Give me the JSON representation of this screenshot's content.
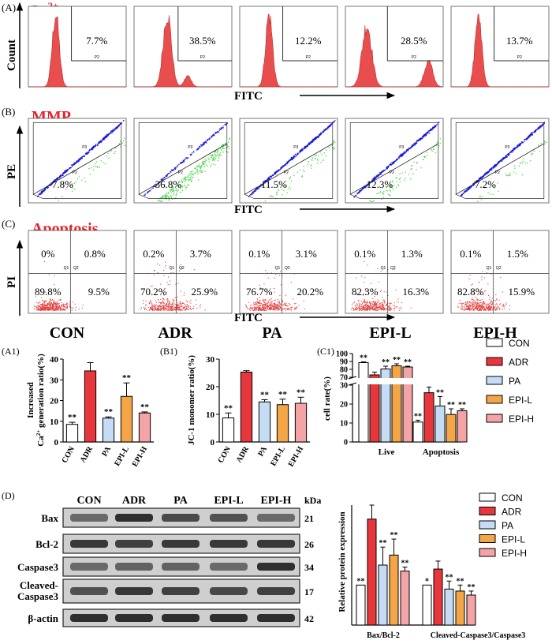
{
  "rows_top": [
    {
      "letter": "(A)",
      "name": "Ca",
      "name_sup": "2+",
      "y_label": "Count",
      "x_label": "FITC",
      "percents": [
        "7.7%",
        "38.5%",
        "12.2%",
        "28.5%",
        "13.7%"
      ],
      "gate": "P2"
    },
    {
      "letter": "(B)",
      "name": "MMP",
      "y_label": "PE",
      "x_label": "FITC",
      "percents": [
        "7.8%",
        "36.8%",
        "11.5%",
        "12.3%",
        "7.2%"
      ],
      "gate_top": "P3",
      "gate_bottom": "P2"
    },
    {
      "letter": "(C)",
      "name": "Apoptosis",
      "y_label": "PI",
      "x_label": "FITC",
      "quadrant_labels": [
        "Q1",
        "Q2"
      ],
      "quadrants": [
        [
          "0%",
          "0.8%",
          "89.8%",
          "9.5%"
        ],
        [
          "0.2%",
          "3.7%",
          "70.2%",
          "25.9%"
        ],
        [
          "0.1%",
          "3.1%",
          "76.7%",
          "20.2%"
        ],
        [
          "0.1%",
          "1.3%",
          "82.3%",
          "16.3%"
        ],
        [
          "0.1%",
          "1.5%",
          "82.8%",
          "15.9%"
        ]
      ]
    }
  ],
  "groups": [
    "CON",
    "ADR",
    "PA",
    "EPI-L",
    "EPI-H"
  ],
  "colors": {
    "CON": "#ffffff",
    "ADR": "#e8373c",
    "PA": "#c6dcf5",
    "EPI-L": "#f4a647",
    "EPI-H": "#f4a3a6",
    "histogram": "#e63b3b",
    "scatter_blue": "#1a1ad6",
    "scatter_green": "#4fd64f",
    "scatter_red": "#e23a3a",
    "title_red": "#e8222b"
  },
  "chart_data": [
    {
      "panel": "(A1)",
      "type": "bar",
      "categories": [
        "CON",
        "ADR",
        "PA",
        "EPI-L",
        "EPI-H"
      ],
      "values": [
        8.5,
        34.3,
        11.5,
        22.0,
        14.0
      ],
      "errors": [
        1.0,
        4.0,
        0.6,
        6.5,
        0.5
      ],
      "sig": [
        "**",
        "",
        "**",
        "**",
        "**"
      ],
      "ylabel_line1": "Increased",
      "ylabel_line2": "generation ratio(%)",
      "ylabel_ion": "Ca",
      "ylabel_sup": "2+",
      "ylim": [
        0,
        40
      ],
      "yticks": [
        "0",
        "10",
        "20",
        "30",
        "40"
      ]
    },
    {
      "panel": "(B1)",
      "type": "bar",
      "categories": [
        "CON",
        "ADR",
        "PA",
        "EPI-L",
        "EPI-H"
      ],
      "values": [
        8.7,
        25.3,
        14.5,
        13.5,
        14.0
      ],
      "errors": [
        1.8,
        0.5,
        0.8,
        2.0,
        2.2
      ],
      "sig": [
        "**",
        "",
        "**",
        "**",
        "**"
      ],
      "ylabel": "JC-1 monomer ratio(%)",
      "ylim": [
        0,
        30
      ],
      "yticks": [
        "0",
        "10",
        "20",
        "30"
      ]
    },
    {
      "panel": "(C1)",
      "type": "bar",
      "categories": [
        "Live",
        "Apoptosis"
      ],
      "series": [
        {
          "name": "CON",
          "values": [
            88.5,
            10.5
          ],
          "errors": [
            1.0,
            1.0
          ],
          "sig": [
            "**",
            "**"
          ]
        },
        {
          "name": "ADR",
          "values": [
            73.0,
            26.0
          ],
          "errors": [
            3.5,
            3.0
          ],
          "sig": [
            "",
            ""
          ]
        },
        {
          "name": "PA",
          "values": [
            80.5,
            19.0
          ],
          "errors": [
            3.5,
            5.0
          ],
          "sig": [
            "**",
            "**"
          ]
        },
        {
          "name": "EPI-L",
          "values": [
            84.5,
            14.5
          ],
          "errors": [
            2.5,
            3.0
          ],
          "sig": [
            "**",
            "**"
          ]
        },
        {
          "name": "EPI-H",
          "values": [
            83.0,
            16.5
          ],
          "errors": [
            1.0,
            1.0
          ],
          "sig": [
            "**",
            "**"
          ]
        }
      ],
      "ylabel": "cell rate(%)",
      "yticks_lower": [
        "0",
        "10",
        "20",
        "30",
        "70"
      ],
      "yticks_upper": [
        "80",
        "90",
        "100"
      ]
    },
    {
      "panel": "(D) right",
      "type": "bar",
      "categories": [
        "Bax/Bcl-2",
        "Cleaved-Caspase3/Caspase3"
      ],
      "series": [
        {
          "name": "CON",
          "values": [
            1.0,
            1.0
          ],
          "errors": [
            0.0,
            0.0
          ],
          "sig": [
            "**",
            "*"
          ]
        },
        {
          "name": "ADR",
          "values": [
            2.65,
            1.4
          ],
          "errors": [
            0.35,
            0.2
          ],
          "sig": [
            "",
            ""
          ]
        },
        {
          "name": "PA",
          "values": [
            1.5,
            0.9
          ],
          "errors": [
            0.45,
            0.2
          ],
          "sig": [
            "**",
            "**"
          ]
        },
        {
          "name": "EPI-L",
          "values": [
            1.75,
            0.85
          ],
          "errors": [
            0.4,
            0.15
          ],
          "sig": [
            "**",
            "**"
          ]
        },
        {
          "name": "EPI-H",
          "values": [
            1.35,
            0.75
          ],
          "errors": [
            0.1,
            0.1
          ],
          "sig": [
            "**",
            "**"
          ]
        }
      ],
      "ylabel": "Relative protein expression",
      "ylim": [
        0,
        3
      ]
    }
  ],
  "blot": {
    "letter": "(D)",
    "kda_label": "kDa",
    "headers": [
      "CON",
      "ADR",
      "PA",
      "EPI-L",
      "EPI-H"
    ],
    "rows": [
      {
        "name": "Bax",
        "name2": "",
        "kda": "21",
        "intensity": [
          0.55,
          0.9,
          0.75,
          0.7,
          0.55
        ]
      },
      {
        "name": "Bcl-2",
        "name2": "",
        "kda": "26",
        "intensity": [
          0.85,
          0.8,
          0.85,
          0.85,
          0.85
        ]
      },
      {
        "name": "Caspase3",
        "name2": "",
        "kda": "34",
        "intensity": [
          0.55,
          0.6,
          0.6,
          0.55,
          0.9
        ]
      },
      {
        "name": "Cleaved-",
        "name2": "Caspase3",
        "kda": "17",
        "intensity": [
          0.7,
          0.85,
          0.8,
          0.75,
          0.8
        ]
      },
      {
        "name": "β-actin",
        "name2": "",
        "kda": "42",
        "intensity": [
          0.9,
          0.9,
          0.9,
          0.9,
          0.9
        ]
      }
    ]
  },
  "legend": [
    "CON",
    "ADR",
    "PA",
    "EPI-L",
    "EPI-H"
  ]
}
